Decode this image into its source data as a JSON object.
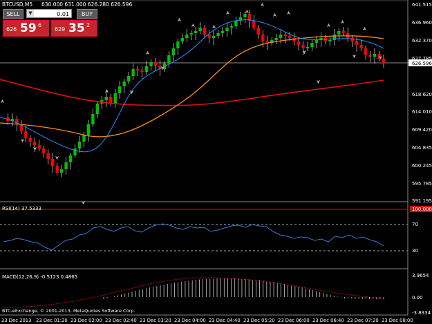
{
  "window": {
    "symbol_title": "BTCUSD,M5",
    "ohlc": "630.000 631.000 626.280 626.596"
  },
  "trade_panel": {
    "sell_label": "SELL",
    "buy_label": "BUY",
    "lot_value": "0.01",
    "sell_price_prefix": "626",
    "sell_price_big": "59",
    "sell_price_sup": "6",
    "buy_price_prefix": "629",
    "buy_price_big": "35",
    "buy_price_sup": "2"
  },
  "price_axis": {
    "labels": [
      "641.515",
      "636.960",
      "632.370",
      "627.785",
      "626.596",
      "618.620",
      "614.010",
      "609.420",
      "604.835",
      "600.245",
      "595.785",
      "591.195"
    ],
    "current_price": "626.596"
  },
  "rsi": {
    "title": "RSI(14) 37.5333",
    "levels": [
      "70",
      "30"
    ],
    "top_marker": "100.000"
  },
  "macd": {
    "title": "MACD(12,26,9) -0.5123 0.4865",
    "levels": [
      "3.9654",
      "0.00",
      "-3.8334"
    ]
  },
  "time_axis": {
    "labels": [
      "23 Dec 2013",
      "23 Dec 01:20",
      "23 Dec 02:00",
      "23 Dec 02:40",
      "23 Dec 03:20",
      "23 Dec 04:00",
      "23 Dec 04:40",
      "23 Dec 05:20",
      "23 Dec 06:00",
      "23 Dec 06:40",
      "23 Dec 07:20",
      "23 Dec 08:00"
    ]
  },
  "copyright": "BTC-eExchange, © 2001-2013, MetaQuotes Software Corp.",
  "colors": {
    "bull": "#00c000",
    "bear": "#ff0000",
    "ma_fast": "#1e90ff",
    "ma_mid": "#ff8c1a",
    "ma_slow": "#e01010",
    "rsi": "#3a7bd5",
    "macd_hist": "#d0d0d0",
    "macd_signal": "#d01010",
    "grid_axis": "#888888"
  }
}
